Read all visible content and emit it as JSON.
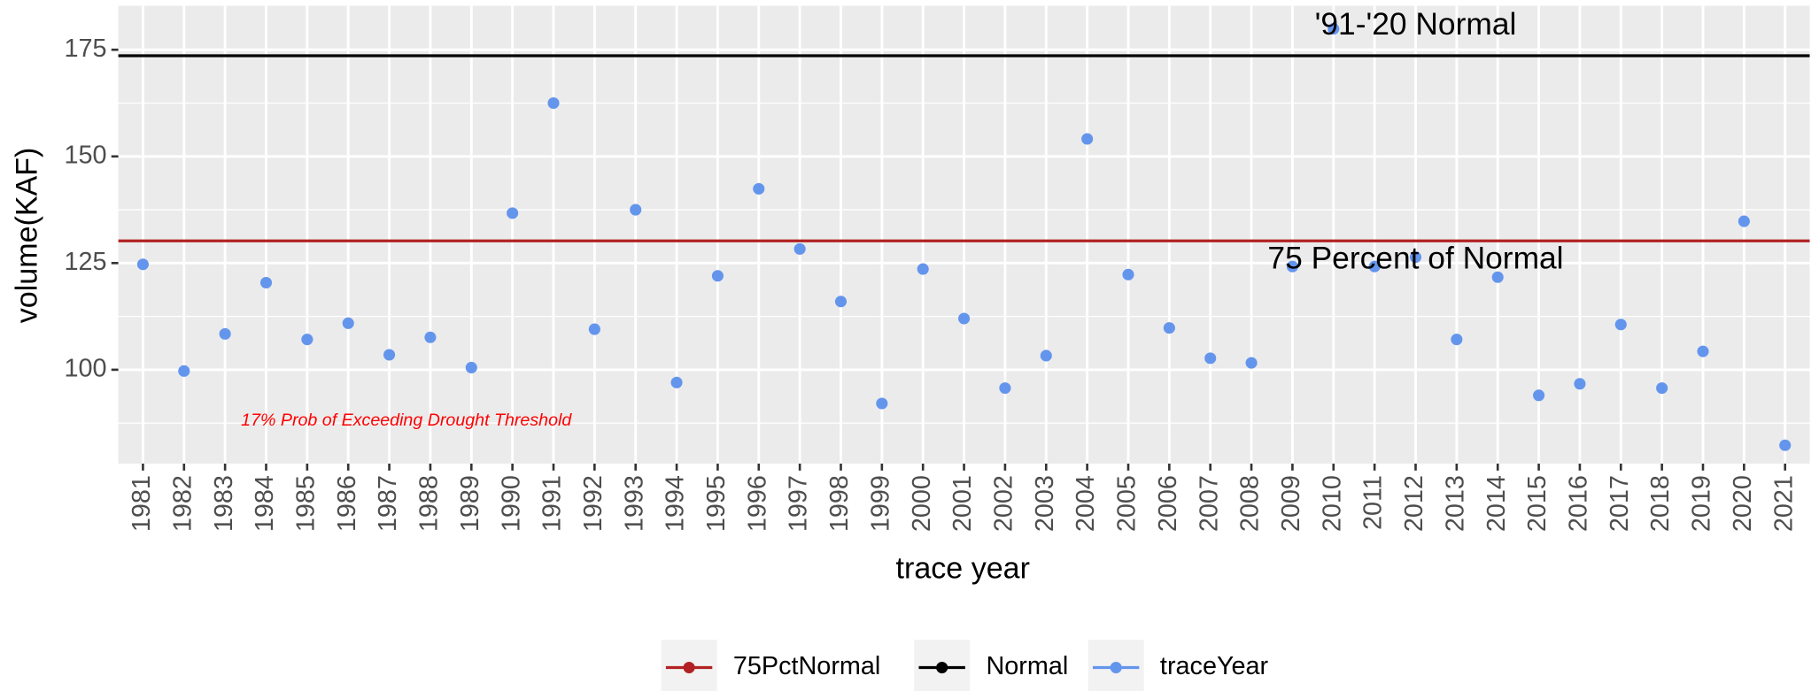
{
  "chart_data": {
    "type": "scatter",
    "x_label": "trace year",
    "y_label": "volume(KAF)",
    "categories": [
      "1981",
      "1982",
      "1983",
      "1984",
      "1985",
      "1986",
      "1987",
      "1988",
      "1989",
      "1990",
      "1991",
      "1992",
      "1993",
      "1994",
      "1995",
      "1996",
      "1997",
      "1998",
      "1999",
      "2000",
      "2001",
      "2002",
      "2003",
      "2004",
      "2005",
      "2006",
      "2007",
      "2008",
      "2009",
      "2010",
      "2011",
      "2012",
      "2013",
      "2014",
      "2015",
      "2016",
      "2017",
      "2018",
      "2019",
      "2020",
      "2021"
    ],
    "series": [
      {
        "name": "traceYear",
        "color": "#6495ed",
        "values": [
          124.7,
          99.7,
          108.4,
          120.4,
          107.1,
          110.9,
          103.5,
          107.6,
          100.5,
          136.7,
          162.5,
          109.5,
          137.5,
          97.0,
          122.0,
          142.4,
          128.3,
          116.0,
          92.1,
          123.6,
          112.0,
          95.7,
          103.3,
          154.1,
          122.3,
          109.8,
          102.7,
          101.6,
          124.2,
          179.9,
          124.2,
          126.4,
          107.1,
          121.7,
          94.0,
          96.7,
          110.6,
          95.7,
          104.3,
          134.8,
          82.3
        ]
      }
    ],
    "reference_lines": [
      {
        "name": "75PctNormal",
        "color": "#b22222",
        "value": 130.2
      },
      {
        "name": "Normal",
        "color": "#000000",
        "value": 173.6
      }
    ],
    "annotations": [
      {
        "text": "'91-'20 Normal",
        "category": "2012",
        "value": 180.5
      },
      {
        "text": "75 Percent of Normal",
        "category": "2012",
        "value": 125.7
      },
      {
        "text": "17% Prob of Exceeding Drought Threshold",
        "category": "1986",
        "value": 88.0,
        "color": "#ff0000"
      }
    ],
    "ylim": [
      78,
      185.3
    ],
    "yticks": [
      100,
      125,
      150,
      175
    ],
    "grid": true,
    "legend": "bottom"
  }
}
